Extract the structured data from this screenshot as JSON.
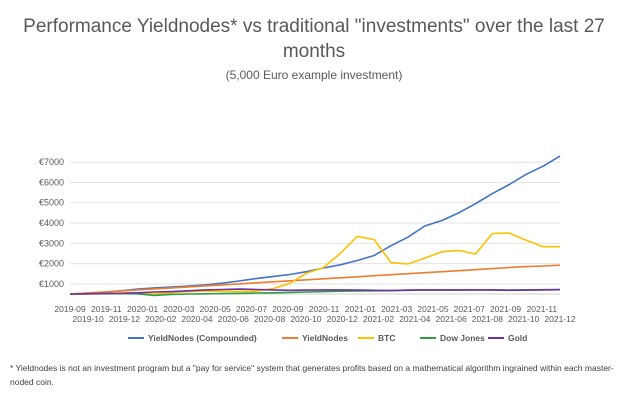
{
  "chart_data": {
    "type": "line",
    "title": "Performance Yieldnodes* vs traditional \"investments\" over the last 27 months",
    "subtitle": "(5,000 Euro example investment)",
    "xlabel": "",
    "ylabel": "",
    "x_ticks_row1": [
      "2019-09",
      "2019-11",
      "2020-01",
      "2020-03",
      "2020-05",
      "2020-07",
      "2020-09",
      "2020-11",
      "2021-01",
      "2021-03",
      "2021-05",
      "2021-07",
      "2021-09",
      "2021-11"
    ],
    "x_ticks_row2": [
      "2019-10",
      "2019-12",
      "2020-02",
      "2020-04",
      "2020-06",
      "2020-08",
      "2020-10",
      "2020-12",
      "2021-02",
      "2021-04",
      "2021-06",
      "2021-08",
      "2021-10",
      "2021-12"
    ],
    "y_ticks": [
      "€1000",
      "€2000",
      "€3000",
      "€4000",
      "€5000",
      "€6000",
      "€7000"
    ],
    "ylim": [
      500,
      7500
    ],
    "grid": true,
    "legend_position": "bottom",
    "series": [
      {
        "name": "YieldNodes (Compounded)",
        "color": "#4472C4",
        "values": [
          500,
          540,
          590,
          660,
          740,
          800,
          840,
          890,
          950,
          1030,
          1140,
          1260,
          1360,
          1460,
          1600,
          1780,
          1940,
          2150,
          2400,
          2880,
          3300,
          3850,
          4120,
          4500,
          4950,
          5450,
          5900,
          6400,
          6800,
          7300
        ]
      },
      {
        "name": "YieldNodes",
        "color": "#ED7D31",
        "values": [
          500,
          550,
          600,
          650,
          700,
          750,
          800,
          850,
          900,
          950,
          1000,
          1050,
          1100,
          1150,
          1200,
          1250,
          1300,
          1350,
          1400,
          1450,
          1500,
          1550,
          1600,
          1650,
          1700,
          1750,
          1800,
          1850,
          1880,
          1920
        ]
      },
      {
        "name": "BTC",
        "color": "#FFC000",
        "values": [
          480,
          500,
          510,
          560,
          560,
          500,
          570,
          620,
          650,
          640,
          620,
          640,
          760,
          1020,
          1530,
          1800,
          2500,
          3340,
          3180,
          2050,
          1980,
          2270,
          2580,
          2650,
          2470,
          3480,
          3500,
          3150,
          2830,
          2830
        ]
      },
      {
        "name": "Dow Jones",
        "color": "#2E9E44",
        "values": [
          500,
          510,
          520,
          520,
          510,
          430,
          480,
          500,
          510,
          520,
          530,
          550,
          560,
          580,
          600,
          620,
          640,
          650,
          660,
          670,
          680,
          690,
          690,
          700,
          700,
          700,
          690,
          700,
          710,
          720
        ]
      },
      {
        "name": "Gold",
        "color": "#7030A0",
        "values": [
          500,
          510,
          520,
          530,
          560,
          600,
          620,
          660,
          700,
          720,
          740,
          720,
          700,
          680,
          690,
          700,
          700,
          690,
          680,
          670,
          690,
          700,
          700,
          690,
          700,
          700,
          680,
          690,
          700,
          710
        ]
      }
    ]
  },
  "footnote": "* Yieldnodes is not an investment program but a \"pay for service\" system that generates profits based on a mathematical algorithm ingrained within each master-noded coin."
}
